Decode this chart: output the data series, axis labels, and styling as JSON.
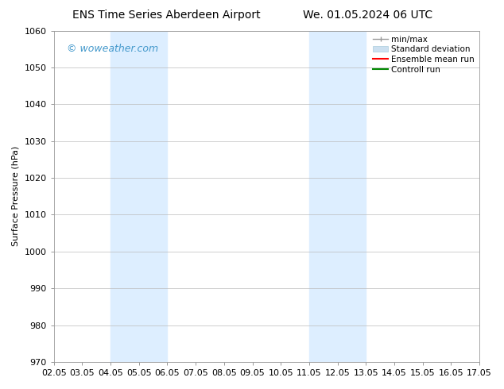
{
  "title_left": "ENS Time Series Aberdeen Airport",
  "title_right": "We. 01.05.2024 06 UTC",
  "ylabel": "Surface Pressure (hPa)",
  "ylim": [
    970,
    1060
  ],
  "yticks": [
    970,
    980,
    990,
    1000,
    1010,
    1020,
    1030,
    1040,
    1050,
    1060
  ],
  "xtick_labels": [
    "02.05",
    "03.05",
    "04.05",
    "05.05",
    "06.05",
    "07.05",
    "08.05",
    "09.05",
    "10.05",
    "11.05",
    "12.05",
    "13.05",
    "14.05",
    "15.05",
    "16.05",
    "17.05"
  ],
  "xtick_positions": [
    0,
    1,
    2,
    3,
    4,
    5,
    6,
    7,
    8,
    9,
    10,
    11,
    12,
    13,
    14,
    15
  ],
  "shaded_bands": [
    {
      "x_start": 2,
      "x_end": 4,
      "color": "#ddeeff"
    },
    {
      "x_start": 9,
      "x_end": 11,
      "color": "#ddeeff"
    }
  ],
  "watermark": "© woweather.com",
  "watermark_color": "#4499cc",
  "background_color": "#ffffff",
  "plot_bg_color": "#ffffff",
  "grid_color": "#bbbbbb",
  "legend_items": [
    {
      "label": "min/max",
      "color": "#999999"
    },
    {
      "label": "Standard deviation",
      "color": "#cce0f0"
    },
    {
      "label": "Ensemble mean run",
      "color": "#ff0000"
    },
    {
      "label": "Controll run",
      "color": "#008800"
    }
  ],
  "title_fontsize": 10,
  "ylabel_fontsize": 8,
  "tick_fontsize": 8,
  "legend_fontsize": 7.5,
  "watermark_fontsize": 9
}
